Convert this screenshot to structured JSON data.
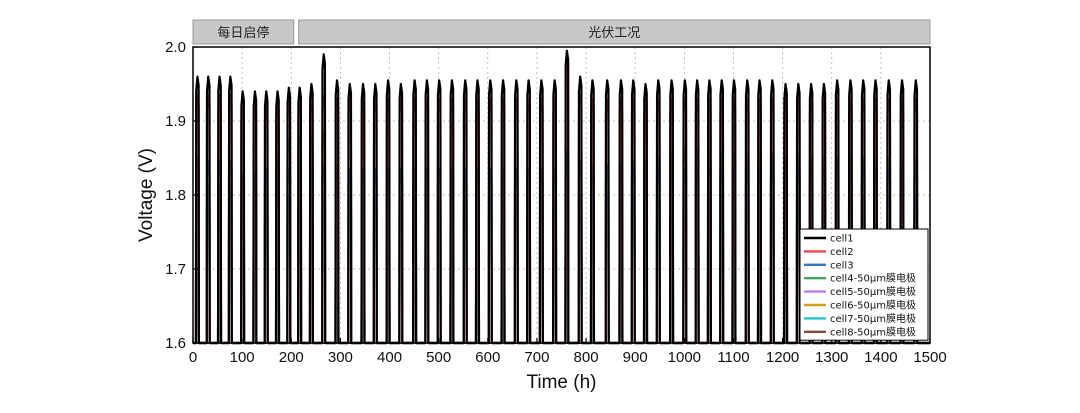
{
  "chart_data": {
    "type": "line",
    "title": "",
    "xlabel": "Time (h)",
    "ylabel": "Voltage (V)",
    "xlim": [
      0,
      1500
    ],
    "ylim": [
      1.6,
      2.0
    ],
    "xticks": [
      0,
      100,
      200,
      300,
      400,
      500,
      600,
      700,
      800,
      900,
      1000,
      1100,
      1200,
      1300,
      1400,
      1500
    ],
    "yticks": [
      1.6,
      1.7,
      1.8,
      1.9,
      2.0
    ],
    "x_tick_labels": [
      "0",
      "100",
      "200",
      "300",
      "400",
      "500",
      "600",
      "700",
      "800",
      "900",
      "1000",
      "1100",
      "1200",
      "1300",
      "1400",
      "1500"
    ],
    "y_tick_labels": [
      "1.6",
      "1.7",
      "1.8",
      "1.9",
      "2.0"
    ],
    "grid": true,
    "legend_position": "bottom-right",
    "phases": [
      {
        "label": "每日启停",
        "x_range": [
          0,
          205
        ]
      },
      {
        "label": "光伏工况",
        "x_range": [
          215,
          1500
        ]
      }
    ],
    "cycle_x": [
      8,
      30,
      53,
      75,
      100,
      125,
      148,
      171,
      194,
      216,
      240,
      265,
      292,
      318,
      345,
      370,
      396,
      422,
      450,
      475,
      500,
      526,
      553,
      578,
      604,
      630,
      657,
      682,
      708,
      735,
      760,
      787,
      812,
      842,
      870,
      895,
      920,
      946,
      973,
      1000,
      1025,
      1050,
      1075,
      1100,
      1127,
      1152,
      1178,
      1205,
      1231,
      1257,
      1283,
      1310,
      1337,
      1363,
      1388,
      1415,
      1442,
      1470
    ],
    "series": [
      {
        "name": "cell1",
        "color": "#000000",
        "base": 1.6,
        "peaks": [
          1.96,
          1.96,
          1.96,
          1.96,
          1.94,
          1.94,
          1.94,
          1.94,
          1.945,
          1.945,
          1.95,
          1.99,
          1.955,
          1.95,
          1.95,
          1.95,
          1.955,
          1.95,
          1.955,
          1.955,
          1.955,
          1.955,
          1.955,
          1.955,
          1.955,
          1.955,
          1.955,
          1.955,
          1.955,
          1.955,
          1.995,
          1.96,
          1.955,
          1.955,
          1.955,
          1.955,
          1.95,
          1.955,
          1.955,
          1.955,
          1.955,
          1.955,
          1.955,
          1.955,
          1.955,
          1.955,
          1.955,
          1.95,
          1.95,
          1.95,
          1.95,
          1.955,
          1.955,
          1.955,
          1.955,
          1.955,
          1.955,
          1.955
        ]
      },
      {
        "name": "cell2",
        "color": "#e8474c",
        "base": 1.6,
        "peaks": [
          1.935,
          1.935,
          1.935,
          1.935,
          1.92,
          1.92,
          1.92,
          1.925,
          1.925,
          1.925,
          1.93,
          1.935,
          1.93,
          1.93,
          1.93,
          1.93,
          1.93,
          1.93,
          1.93,
          1.93,
          1.93,
          1.93,
          1.93,
          1.93,
          1.93,
          1.93,
          1.93,
          1.93,
          1.93,
          1.93,
          1.99,
          1.935,
          1.93,
          1.93,
          1.93,
          1.93,
          1.93,
          1.93,
          1.93,
          1.93,
          1.93,
          1.93,
          1.93,
          1.93,
          1.93,
          1.93,
          1.93,
          1.93,
          1.93,
          1.93,
          1.93,
          1.93,
          1.93,
          1.93,
          1.93,
          1.93,
          1.93,
          1.93
        ]
      },
      {
        "name": "cell3",
        "color": "#2f79c8",
        "base": 1.6,
        "peaks": [
          1.85,
          1.845,
          1.845,
          1.845,
          1.83,
          1.83,
          1.83,
          1.83,
          1.835,
          1.835,
          1.835,
          1.84,
          1.835,
          1.835,
          1.835,
          1.835,
          1.835,
          1.835,
          1.835,
          1.835,
          1.835,
          1.835,
          1.835,
          1.835,
          1.835,
          1.835,
          1.835,
          1.835,
          1.835,
          1.835,
          1.86,
          1.84,
          1.835,
          1.835,
          1.835,
          1.835,
          1.835,
          1.835,
          1.835,
          1.835,
          1.835,
          1.84,
          1.835,
          1.835,
          1.835,
          1.835,
          1.835,
          1.835,
          1.835,
          1.835,
          1.835,
          1.835,
          1.835,
          1.835,
          1.835,
          1.835,
          1.835,
          1.835
        ]
      },
      {
        "name": "cell4-50μm膜电极",
        "color": "#4aa35c",
        "base": 1.6,
        "peaks": [
          1.82,
          1.815,
          1.815,
          1.815,
          1.82,
          1.825,
          1.835,
          1.85,
          1.875,
          1.88,
          1.88,
          1.885,
          1.84,
          1.83,
          1.83,
          1.83,
          1.83,
          1.83,
          1.83,
          1.83,
          1.83,
          1.83,
          1.83,
          1.83,
          1.83,
          1.83,
          1.83,
          1.83,
          1.83,
          1.83,
          1.845,
          1.845,
          1.84,
          1.84,
          1.84,
          1.845,
          1.845,
          1.85,
          1.855,
          1.86,
          1.86,
          1.86,
          1.855,
          1.855,
          1.855,
          1.855,
          1.855,
          1.85,
          1.85,
          1.85,
          1.85,
          1.85,
          1.85,
          1.85,
          1.85,
          1.85,
          1.85,
          1.85
        ]
      },
      {
        "name": "cell5-50μm膜电极",
        "color": "#b87ee6",
        "base": 1.6,
        "peaks": [
          1.8,
          1.8,
          1.8,
          1.8,
          1.8,
          1.8,
          1.8,
          1.8,
          1.8,
          1.8,
          1.8,
          1.8,
          1.8,
          1.8,
          1.8,
          1.8,
          1.8,
          1.8,
          1.8,
          1.8,
          1.8,
          1.8,
          1.8,
          1.8,
          1.8,
          1.8,
          1.8,
          1.8,
          1.8,
          1.8,
          1.8,
          1.8,
          1.8,
          1.8,
          1.8,
          1.8,
          1.8,
          1.8,
          1.8,
          1.8,
          1.8,
          1.8,
          1.8,
          1.8,
          1.8,
          1.8,
          1.8,
          1.8,
          1.8,
          1.8,
          1.8,
          1.8,
          1.8,
          1.8,
          1.8,
          1.8,
          1.8,
          1.8
        ]
      },
      {
        "name": "cell6-50μm膜电极",
        "color": "#d4a018",
        "base": 1.6,
        "peaks": [
          1.795,
          1.79,
          1.79,
          1.79,
          1.785,
          1.785,
          1.785,
          1.785,
          1.79,
          1.79,
          1.79,
          1.79,
          1.795,
          1.795,
          1.795,
          1.795,
          1.795,
          1.795,
          1.795,
          1.795,
          1.795,
          1.795,
          1.795,
          1.795,
          1.795,
          1.795,
          1.795,
          1.795,
          1.795,
          1.795,
          1.8,
          1.795,
          1.795,
          1.795,
          1.795,
          1.795,
          1.795,
          1.795,
          1.795,
          1.795,
          1.795,
          1.795,
          1.795,
          1.795,
          1.795,
          1.795,
          1.795,
          1.795,
          1.795,
          1.795,
          1.795,
          1.795,
          1.795,
          1.795,
          1.795,
          1.795,
          1.795,
          1.795
        ]
      },
      {
        "name": "cell7-50μm膜电极",
        "color": "#22c7c7",
        "base": 1.6,
        "peaks": [
          1.79,
          1.79,
          1.79,
          1.79,
          1.785,
          1.785,
          1.785,
          1.785,
          1.79,
          1.79,
          1.79,
          1.79,
          1.79,
          1.79,
          1.79,
          1.79,
          1.79,
          1.79,
          1.79,
          1.79,
          1.79,
          1.79,
          1.79,
          1.79,
          1.79,
          1.79,
          1.79,
          1.79,
          1.79,
          1.79,
          1.8,
          1.79,
          1.79,
          1.79,
          1.79,
          1.79,
          1.79,
          1.79,
          1.79,
          1.79,
          1.79,
          1.79,
          1.79,
          1.79,
          1.79,
          1.79,
          1.79,
          1.79,
          1.79,
          1.79,
          1.79,
          1.79,
          1.79,
          1.79,
          1.79,
          1.79,
          1.79,
          1.79
        ]
      },
      {
        "name": "cell8-50μm膜电极",
        "color": "#8b4a3c",
        "base": 1.6,
        "peaks": [
          1.785,
          1.785,
          1.785,
          1.785,
          1.78,
          1.78,
          1.78,
          1.78,
          1.785,
          1.785,
          1.785,
          1.785,
          1.785,
          1.785,
          1.785,
          1.785,
          1.785,
          1.785,
          1.785,
          1.785,
          1.785,
          1.785,
          1.785,
          1.785,
          1.785,
          1.785,
          1.785,
          1.785,
          1.785,
          1.785,
          1.79,
          1.785,
          1.785,
          1.785,
          1.785,
          1.785,
          1.785,
          1.785,
          1.785,
          1.785,
          1.785,
          1.785,
          1.785,
          1.785,
          1.785,
          1.785,
          1.785,
          1.785,
          1.785,
          1.785,
          1.785,
          1.785,
          1.785,
          1.785,
          1.785,
          1.785,
          1.785,
          1.785
        ]
      }
    ]
  }
}
